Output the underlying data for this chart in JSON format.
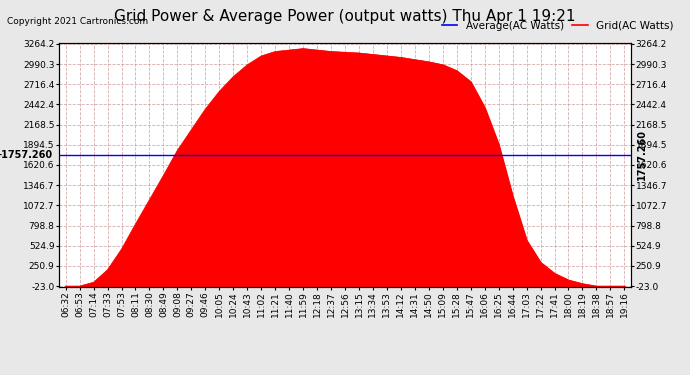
{
  "title": "Grid Power & Average Power (output watts) Thu Apr 1 19:21",
  "copyright": "Copyright 2021 Cartronics.com",
  "avg_label": "Average(AC Watts)",
  "grid_label": "Grid(AC Watts)",
  "avg_color": "blue",
  "grid_color": "red",
  "fill_color": "red",
  "background_color": "#e8e8e8",
  "plot_bg_color": "#ffffff",
  "avg_value": 1757.26,
  "y_min": -23.0,
  "y_max": 3264.2,
  "y_ticks": [
    -23.0,
    250.9,
    524.9,
    798.8,
    1072.7,
    1346.7,
    1620.6,
    1894.5,
    2168.5,
    2442.4,
    2716.4,
    2990.3,
    3264.2
  ],
  "x_labels": [
    "06:32",
    "06:53",
    "07:14",
    "07:33",
    "07:53",
    "08:11",
    "08:30",
    "08:49",
    "09:08",
    "09:27",
    "09:46",
    "10:05",
    "10:24",
    "10:43",
    "11:02",
    "11:21",
    "11:40",
    "11:59",
    "12:18",
    "12:37",
    "12:56",
    "13:15",
    "13:34",
    "13:53",
    "14:12",
    "14:31",
    "14:50",
    "15:09",
    "15:28",
    "15:47",
    "16:06",
    "16:25",
    "16:44",
    "17:03",
    "17:22",
    "17:41",
    "18:00",
    "18:19",
    "18:38",
    "18:57",
    "19:16"
  ],
  "y_curve": [
    -23,
    -23,
    30,
    200,
    480,
    820,
    1150,
    1480,
    1820,
    2100,
    2380,
    2620,
    2820,
    2980,
    3100,
    3160,
    3180,
    3200,
    3180,
    3160,
    3150,
    3140,
    3120,
    3100,
    3080,
    3050,
    3020,
    2980,
    2900,
    2750,
    2400,
    1900,
    1200,
    600,
    300,
    150,
    60,
    10,
    -23,
    -23,
    -23
  ],
  "title_fontsize": 11,
  "tick_fontsize": 6.5,
  "legend_fontsize": 7.5,
  "copyright_fontsize": 6.5,
  "avg_line_color": "blue",
  "grid_color_line": "#aaaaaa",
  "avg_annotation_fontsize": 7
}
